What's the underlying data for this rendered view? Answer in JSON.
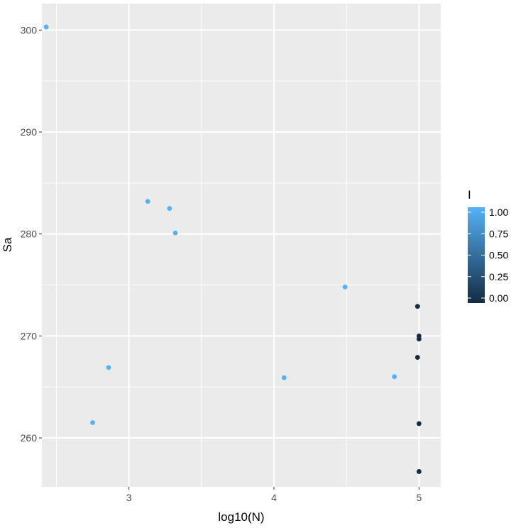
{
  "chart_data": {
    "type": "scatter",
    "xlabel": "log10(N)",
    "ylabel": "Sa",
    "xlim": [
      2.4,
      5.15
    ],
    "ylim": [
      255.2,
      302.6
    ],
    "x_ticks": [
      3,
      4,
      5
    ],
    "y_ticks": [
      260,
      270,
      280,
      290,
      300
    ],
    "x_tick_labels": [
      "3",
      "4",
      "5"
    ],
    "y_tick_labels": [
      "260",
      "270",
      "280",
      "290",
      "300"
    ],
    "grid": true,
    "legend": {
      "title": "I",
      "placement": "right",
      "type": "colorbar",
      "breaks": [
        1.0,
        0.75,
        0.5,
        0.25,
        0.0
      ],
      "labels": [
        "1.00",
        "0.75",
        "0.50",
        "0.25",
        "0.00"
      ],
      "color_low": "#132B43",
      "color_high": "#56B1F7"
    },
    "colors": {
      "panel_background": "#EBEBEB",
      "grid": "#FFFFFF",
      "axis_text": "#4D4D4D",
      "title_text": "#000000"
    },
    "points": [
      {
        "x": 2.43,
        "y": 300.3,
        "I": 1
      },
      {
        "x": 2.75,
        "y": 261.5,
        "I": 1
      },
      {
        "x": 2.86,
        "y": 266.9,
        "I": 1
      },
      {
        "x": 3.13,
        "y": 283.2,
        "I": 1
      },
      {
        "x": 3.28,
        "y": 282.5,
        "I": 1
      },
      {
        "x": 3.32,
        "y": 280.1,
        "I": 1
      },
      {
        "x": 4.07,
        "y": 265.9,
        "I": 1
      },
      {
        "x": 4.49,
        "y": 274.8,
        "I": 1
      },
      {
        "x": 4.83,
        "y": 266.0,
        "I": 1
      },
      {
        "x": 4.99,
        "y": 272.9,
        "I": 0
      },
      {
        "x": 5.0,
        "y": 270.0,
        "I": 0
      },
      {
        "x": 5.0,
        "y": 269.7,
        "I": 0
      },
      {
        "x": 4.99,
        "y": 267.9,
        "I": 0
      },
      {
        "x": 5.0,
        "y": 261.4,
        "I": 0
      },
      {
        "x": 5.0,
        "y": 256.7,
        "I": 0
      }
    ]
  }
}
